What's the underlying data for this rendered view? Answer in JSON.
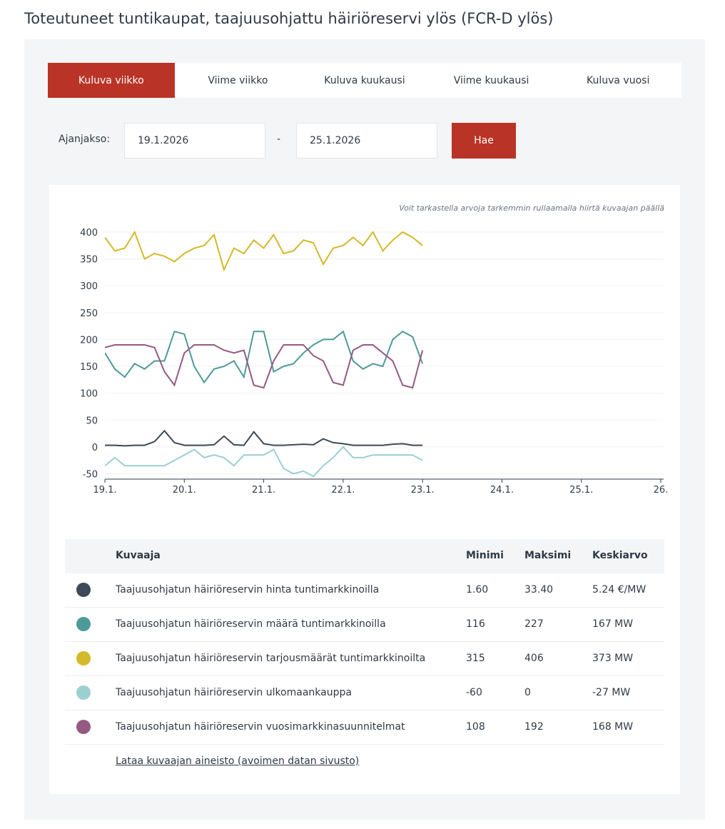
{
  "header": {
    "title": "Toteutuneet tuntikaupat, taajuusohjattu häiriöreservi ylös (FCR-D ylös)"
  },
  "tabs": [
    "Kuluva viikko",
    "Viime viikko",
    "Kuluva kuukausi",
    "Viime kuukausi",
    "Kuluva vuosi"
  ],
  "period": {
    "label": "Ajanjakso:",
    "start": "19.1.2026",
    "separator": "-",
    "end": "25.1.2026",
    "button": "Hae"
  },
  "chart_hint": "Voit tarkastella arvoja tarkemmin rullaamalla hiirtä kuvaajan päällä",
  "chart_data": {
    "type": "line",
    "x": [
      0,
      0.125,
      0.25,
      0.375,
      0.5,
      0.625,
      0.75,
      0.875,
      1,
      1.125,
      1.25,
      1.375,
      1.5,
      1.625,
      1.75,
      1.875,
      2,
      2.125,
      2.25,
      2.375,
      2.5,
      2.625,
      2.75,
      2.875,
      3,
      3.125,
      3.25,
      3.375,
      3.5,
      3.625,
      3.75,
      3.875,
      4
    ],
    "xlim": [
      0,
      7
    ],
    "xticks": [
      {
        "value": 0,
        "label": "19.1."
      },
      {
        "value": 1,
        "label": "20.1."
      },
      {
        "value": 2,
        "label": "21.1."
      },
      {
        "value": 3,
        "label": "22.1."
      },
      {
        "value": 4,
        "label": "23.1."
      },
      {
        "value": 5,
        "label": "24.1."
      },
      {
        "value": 6,
        "label": "25.1."
      },
      {
        "value": 7,
        "label": "26."
      }
    ],
    "ylim": [
      -60,
      410
    ],
    "yticks": [
      -50,
      0,
      50,
      100,
      150,
      200,
      250,
      300,
      350,
      400
    ],
    "grid": true,
    "series": [
      {
        "name": "Taajuusohjatun häiriöreservin hinta tuntimarkkinoilla",
        "color": "#3d4a57",
        "values": [
          3,
          3,
          2,
          3,
          3,
          10,
          30,
          8,
          3,
          3,
          3,
          4,
          20,
          4,
          3,
          28,
          6,
          3,
          3,
          4,
          5,
          4,
          15,
          8,
          6,
          3,
          3,
          3,
          3,
          5,
          6,
          3,
          3
        ]
      },
      {
        "name": "Taajuusohjatun häiriöreservin määrä tuntimarkkinoilla",
        "color": "#4e9a9a",
        "values": [
          175,
          145,
          130,
          155,
          145,
          160,
          160,
          215,
          210,
          150,
          120,
          145,
          150,
          160,
          130,
          215,
          215,
          140,
          150,
          155,
          175,
          190,
          200,
          200,
          215,
          160,
          145,
          155,
          150,
          200,
          215,
          205,
          155
        ]
      },
      {
        "name": "Taajuusohjatun häiriöreservin tarjousmäärät tuntimarkkinoilta",
        "color": "#d4b92a",
        "values": [
          390,
          365,
          370,
          400,
          350,
          360,
          355,
          345,
          360,
          370,
          375,
          395,
          330,
          370,
          360,
          385,
          370,
          395,
          360,
          365,
          385,
          380,
          340,
          370,
          375,
          390,
          375,
          400,
          365,
          385,
          400,
          390,
          375
        ]
      },
      {
        "name": "Taajuusohjatun häiriöreservin ulkomaankauppa",
        "color": "#9ccfd0",
        "values": [
          -35,
          -20,
          -35,
          -35,
          -35,
          -35,
          -35,
          -25,
          -15,
          -5,
          -20,
          -15,
          -20,
          -35,
          -15,
          -15,
          -15,
          -5,
          -40,
          -50,
          -45,
          -55,
          -35,
          -20,
          0,
          -20,
          -20,
          -15,
          -15,
          -15,
          -15,
          -15,
          -25
        ]
      },
      {
        "name": "Taajuusohjatun häiriöreservin vuosimarkkinasuunnitelmat",
        "color": "#955a82",
        "values": [
          185,
          190,
          190,
          190,
          190,
          185,
          140,
          115,
          175,
          190,
          190,
          190,
          180,
          175,
          180,
          115,
          110,
          160,
          190,
          190,
          190,
          170,
          160,
          120,
          115,
          180,
          190,
          190,
          175,
          160,
          115,
          110,
          180
        ]
      }
    ]
  },
  "table": {
    "columns": [
      "Kuvaaja",
      "Minimi",
      "Maksimi",
      "Keskiarvo"
    ],
    "rows": [
      [
        "1.60",
        "33.40",
        "5.24 €/MW"
      ],
      [
        "116",
        "227",
        "167 MW"
      ],
      [
        "315",
        "406",
        "373 MW"
      ],
      [
        "-60",
        "0",
        "-27 MW"
      ],
      [
        "108",
        "192",
        "168 MW"
      ]
    ]
  },
  "download_link": "Lataa kuvaajan aineisto (avoimen datan sivusto)"
}
